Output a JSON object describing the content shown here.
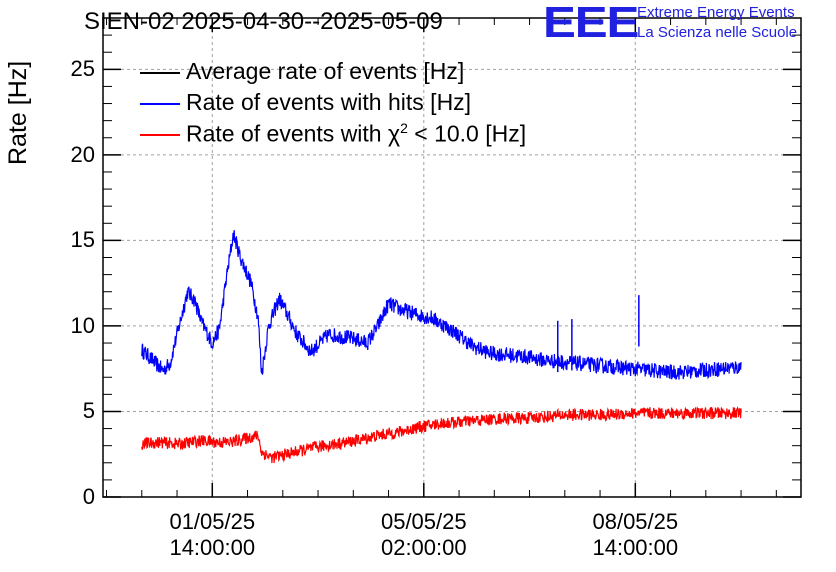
{
  "header": {
    "title": "SIEN-02 2025-04-30--2025-05-09",
    "logo_mark": "EEE",
    "logo_line1": "Extreme Energy Events",
    "logo_line2": "La Scienza nelle Scuole",
    "logo_color": "#2020e0"
  },
  "chart_data": {
    "type": "line",
    "title": "SIEN-02 2025-04-30--2025-05-09",
    "ylabel": "Rate [Hz]",
    "xlabel": "",
    "ylim": [
      0,
      28
    ],
    "yticks": [
      0,
      5,
      10,
      15,
      20,
      25
    ],
    "ytick_labels": [
      "0",
      "5",
      "10",
      "15",
      "20",
      "25"
    ],
    "xlim_days": [
      0,
      9.9
    ],
    "xticks": [
      {
        "day": 1.55,
        "line1": "01/05/25",
        "line2": "14:00:00"
      },
      {
        "day": 4.55,
        "line1": "05/05/25",
        "line2": "02:00:00"
      },
      {
        "day": 7.55,
        "line1": "08/05/25",
        "line2": "14:00:00"
      }
    ],
    "grid": true,
    "legend_position": "top-left",
    "legend": [
      {
        "label_main": "Average rate of events [Hz]",
        "color": "#000000"
      },
      {
        "label_main": "Rate of events with hits [Hz]",
        "color": "#0000ff"
      },
      {
        "label_pre": "Rate of events with ",
        "chi": "χ",
        "sup": "2",
        "label_post": " < 10.0 [Hz]",
        "color": "#ff0000"
      }
    ],
    "series": [
      {
        "name": "Rate of events with hits [Hz]",
        "color": "#0000ff",
        "noise": 0.45,
        "x": [
          0.55,
          0.7,
          0.85,
          0.95,
          1.05,
          1.2,
          1.3,
          1.4,
          1.55,
          1.65,
          1.75,
          1.85,
          1.95,
          2.1,
          2.2,
          2.25,
          2.35,
          2.5,
          2.6,
          2.75,
          2.95,
          3.2,
          3.5,
          3.75,
          3.9,
          4.05,
          4.2,
          4.35,
          4.5,
          4.65,
          4.85,
          5.0,
          5.25,
          5.5,
          5.75,
          6.0,
          6.25,
          6.5,
          6.75,
          7.0,
          7.25,
          7.5,
          7.75,
          8.0,
          8.25,
          8.5,
          8.75,
          9.05
        ],
        "y": [
          8.6,
          8.0,
          7.4,
          7.8,
          9.5,
          12.0,
          11.5,
          10.2,
          9.0,
          9.8,
          12.8,
          15.4,
          14.0,
          12.5,
          10.5,
          7.2,
          10.0,
          11.6,
          10.8,
          9.5,
          8.5,
          9.5,
          9.3,
          9.0,
          10.0,
          11.3,
          11.0,
          10.8,
          10.6,
          10.5,
          10.0,
          9.6,
          8.8,
          8.4,
          8.3,
          8.2,
          8.0,
          7.9,
          7.8,
          7.7,
          7.6,
          7.5,
          7.4,
          7.3,
          7.3,
          7.4,
          7.5,
          7.6
        ],
        "spikes": [
          {
            "x": 6.45,
            "y": 10.3
          },
          {
            "x": 6.65,
            "y": 10.4
          },
          {
            "x": 7.6,
            "y": 11.8
          }
        ]
      },
      {
        "name": "Rate of events with χ2 < 10.0 [Hz]",
        "color": "#ff0000",
        "noise": 0.35,
        "x": [
          0.55,
          0.8,
          1.1,
          1.4,
          1.6,
          1.8,
          2.1,
          2.2,
          2.25,
          2.4,
          2.7,
          3.0,
          3.3,
          3.6,
          3.9,
          4.2,
          4.5,
          4.8,
          5.1,
          5.4,
          5.7,
          6.0,
          6.3,
          6.6,
          6.9,
          7.2,
          7.5,
          7.8,
          8.1,
          8.4,
          8.7,
          9.05
        ],
        "y": [
          3.1,
          3.2,
          3.1,
          3.3,
          3.2,
          3.2,
          3.5,
          3.6,
          2.6,
          2.3,
          2.6,
          2.9,
          3.1,
          3.3,
          3.6,
          3.8,
          4.1,
          4.3,
          4.4,
          4.5,
          4.6,
          4.6,
          4.7,
          4.8,
          4.8,
          4.8,
          4.9,
          4.9,
          4.9,
          4.9,
          4.9,
          4.9
        ],
        "spikes": []
      }
    ]
  }
}
